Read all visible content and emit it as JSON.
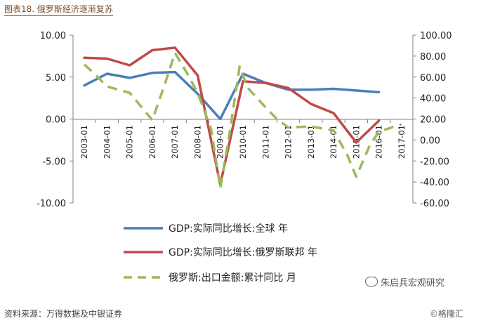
{
  "figure": {
    "title": "图表18. 俄罗斯经济逐渐复苏",
    "source": "资料来源：万得数据及中银证券",
    "watermark_channel": "朱启兵宏观研究",
    "watermark_site": "©格隆汇"
  },
  "chart_data": {
    "type": "line",
    "x": [
      "2003-01",
      "2004-01",
      "2005-01",
      "2006-01",
      "2007-01",
      "2008-01",
      "2009-01",
      "2010-01",
      "2011-01",
      "2012-01",
      "2013-01",
      "2014-01",
      "2015-01",
      "2016-01",
      "2017-01"
    ],
    "left_axis": {
      "ylim": [
        -10,
        10
      ],
      "ticks": [
        "10.00",
        "5.00",
        "0.00",
        "-5.00",
        "-10.00"
      ],
      "tick_values": [
        10,
        5,
        0,
        -5,
        -10
      ]
    },
    "right_axis": {
      "ylim": [
        -60,
        100
      ],
      "ticks": [
        "100.00",
        "80.00",
        "60.00",
        "40.00",
        "20.00",
        "0.00",
        "-20.00",
        "-40.00",
        "-60.00"
      ],
      "tick_values": [
        100,
        80,
        60,
        40,
        20,
        0,
        -20,
        -40,
        -60
      ]
    },
    "series": [
      {
        "name": "GDP:实际同比增长:全球 年",
        "axis": "left",
        "color": "#4a7ebb",
        "style": "solid",
        "points": [
          [
            0,
            4.0
          ],
          [
            1,
            5.4
          ],
          [
            2,
            4.9
          ],
          [
            3,
            5.5
          ],
          [
            4,
            5.6
          ],
          [
            5,
            3.0
          ],
          [
            6,
            0.0
          ],
          [
            7,
            5.4
          ],
          [
            8,
            4.3
          ],
          [
            9,
            3.5
          ],
          [
            10,
            3.5
          ],
          [
            11,
            3.6
          ],
          [
            12,
            3.4
          ],
          [
            13,
            3.2
          ]
        ]
      },
      {
        "name": "GDP:实际同比增长:俄罗斯联邦 年",
        "axis": "left",
        "color": "#be4b48",
        "style": "solid",
        "points": [
          [
            0,
            7.3
          ],
          [
            1,
            7.2
          ],
          [
            2,
            6.4
          ],
          [
            3,
            8.2
          ],
          [
            4,
            8.5
          ],
          [
            5,
            5.2
          ],
          [
            6,
            -7.8
          ],
          [
            7,
            4.5
          ],
          [
            8,
            4.3
          ],
          [
            9,
            3.7
          ],
          [
            10,
            1.8
          ],
          [
            11,
            0.7
          ],
          [
            12,
            -2.8
          ],
          [
            13,
            -0.2
          ]
        ]
      },
      {
        "name": "俄罗斯:出口金额:累计同比 月",
        "axis": "right",
        "color": "#9bbb59",
        "style": "dashed",
        "points": [
          [
            0,
            72
          ],
          [
            0.5,
            62
          ],
          [
            1,
            51
          ],
          [
            2,
            45
          ],
          [
            2.5,
            32
          ],
          [
            3,
            19
          ],
          [
            3.5,
            50
          ],
          [
            4,
            83
          ],
          [
            4.5,
            65
          ],
          [
            5,
            45
          ],
          [
            5.6,
            10
          ],
          [
            6,
            -46
          ],
          [
            6.4,
            5
          ],
          [
            6.85,
            70
          ],
          [
            7.2,
            50
          ],
          [
            8,
            31
          ],
          [
            8.5,
            20
          ],
          [
            9,
            12
          ],
          [
            10,
            13
          ],
          [
            10.5,
            11
          ],
          [
            11,
            9
          ],
          [
            11.6,
            -14
          ],
          [
            12,
            -35
          ],
          [
            12.6,
            -5
          ],
          [
            13,
            8
          ],
          [
            14,
            15
          ]
        ]
      }
    ]
  }
}
